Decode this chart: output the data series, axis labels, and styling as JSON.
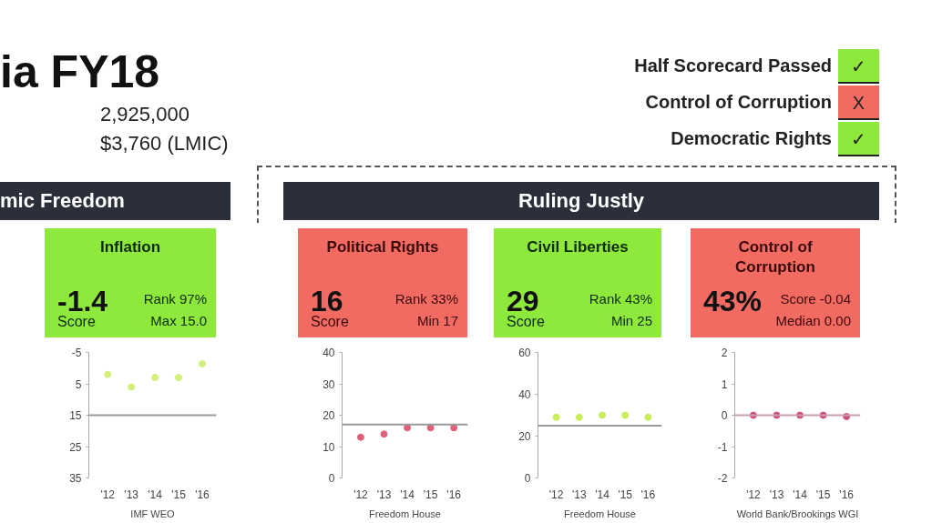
{
  "chart_data": [
    {
      "type": "other",
      "title": "ia FY18",
      "annotations": [
        "2,925,000",
        "$3,760 (LMIC)",
        "Half Scorecard Passed",
        "✓",
        "Control of Corruption",
        "X",
        "Democratic Rights",
        "✓",
        "mic Freedom",
        "Ruling Justly"
      ]
    },
    {
      "type": "scatter",
      "title": "Inflation",
      "annotations": [
        "-1.4",
        "Score",
        "Rank 97%",
        "Max 15.0",
        "IMF WEO"
      ],
      "categories": [
        "'12",
        "'13",
        "'14",
        "'15",
        "'16"
      ],
      "values": [
        2,
        6,
        3,
        3,
        -1.4
      ],
      "color": "#d4f07a",
      "ylim": [
        35,
        -5
      ],
      "yticks": [
        -5,
        5,
        15,
        25,
        35
      ],
      "ref_lines": [
        {
          "axis": "y",
          "value": 15,
          "color": "#9a9a9a"
        }
      ],
      "marker": "circle",
      "grid": false
    },
    {
      "type": "scatter",
      "title": "Political Rights",
      "annotations": [
        "16",
        "Score",
        "Rank 33%",
        "Min 17",
        "Freedom House"
      ],
      "categories": [
        "'12",
        "'13",
        "'14",
        "'15",
        "'16"
      ],
      "values": [
        13,
        14,
        16,
        16,
        16
      ],
      "color": "#e0607a",
      "ylim": [
        0,
        40
      ],
      "yticks": [
        0,
        10,
        20,
        30,
        40
      ],
      "ref_lines": [
        {
          "axis": "y",
          "value": 17,
          "color": "#9a9a9a"
        }
      ],
      "marker": "circle",
      "grid": false
    },
    {
      "type": "scatter",
      "title": "Civil Liberties",
      "annotations": [
        "29",
        "Score",
        "Rank 43%",
        "Min 25",
        "Freedom House"
      ],
      "categories": [
        "'12",
        "'13",
        "'14",
        "'15",
        "'16"
      ],
      "values": [
        29,
        29,
        30,
        30,
        29
      ],
      "color": "#c8ec5a",
      "ylim": [
        0,
        60
      ],
      "yticks": [
        0,
        20,
        40,
        60
      ],
      "ref_lines": [
        {
          "axis": "y",
          "value": 25,
          "color": "#9a9a9a"
        }
      ],
      "marker": "circle",
      "grid": false
    },
    {
      "type": "scatter",
      "title": "Control of Corruption",
      "annotations": [
        "43%",
        "Score -0.04",
        "Median 0.00",
        "World Bank/Brookings WGI"
      ],
      "categories": [
        "'12",
        "'13",
        "'14",
        "'15",
        "'16"
      ],
      "values": [
        0,
        0,
        0,
        0,
        -0.04
      ],
      "color": "#d0507a",
      "ylim": [
        -2,
        2
      ],
      "yticks": [
        -2,
        -1,
        0,
        1,
        2
      ],
      "ref_lines": [
        {
          "axis": "y",
          "value": 0,
          "color": "#c8a0a8"
        }
      ],
      "marker": "circle",
      "grid": false
    }
  ]
}
